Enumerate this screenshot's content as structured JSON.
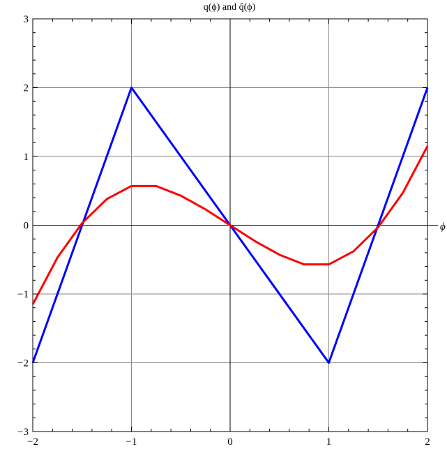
{
  "chart_data": {
    "type": "line",
    "title": "q(ϕ) and q̂(ϕ)",
    "xlabel": "ϕ",
    "ylabel": "",
    "xlim": [
      -2,
      2
    ],
    "ylim": [
      -3,
      3
    ],
    "grid": true,
    "legend": "none",
    "x_ticks": [
      -2,
      -1,
      0,
      1,
      2
    ],
    "y_ticks": [
      -3,
      -2,
      -1,
      0,
      1,
      2,
      3
    ],
    "x_tick_labels": [
      "−2",
      "−1",
      "0",
      "1",
      "2"
    ],
    "y_tick_labels": [
      "−3",
      "−2",
      "−1",
      "0",
      "1",
      "2",
      "3"
    ],
    "series": [
      {
        "color": "#0000ff",
        "kind": "piecewise-linear",
        "x": [
          -2,
          -1,
          1,
          2
        ],
        "y": [
          -2,
          2,
          -2,
          2
        ]
      },
      {
        "color": "#ff0000",
        "kind": "cubic",
        "x": [
          -2,
          -1.75,
          -1.5,
          -1.25,
          -1,
          -0.75,
          -0.5,
          -0.25,
          0,
          0.25,
          0.5,
          0.75,
          1,
          1.25,
          1.5,
          1.75,
          2
        ],
        "y": [
          -1.15,
          -0.47,
          0.03,
          0.38,
          0.57,
          0.57,
          0.43,
          0.23,
          0,
          -0.23,
          -0.43,
          -0.57,
          -0.57,
          -0.38,
          -0.03,
          0.47,
          1.15
        ]
      }
    ]
  }
}
